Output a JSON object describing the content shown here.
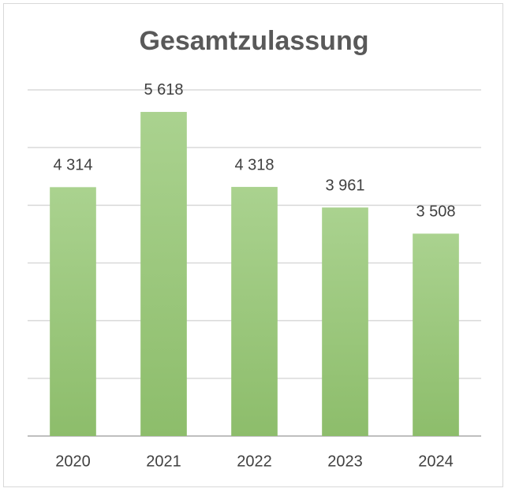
{
  "chart_data": {
    "type": "bar",
    "title": "Gesamtzulassung",
    "categories": [
      "2020",
      "2021",
      "2022",
      "2023",
      "2024"
    ],
    "values": [
      4314,
      5618,
      4318,
      3961,
      3508
    ],
    "value_labels": [
      "4 314",
      "5 618",
      "4 318",
      "3 961",
      "3 508"
    ],
    "color": "#9fcb83",
    "ylim": [
      0,
      6000
    ],
    "yticks": [
      0,
      1000,
      2000,
      3000,
      4000,
      5000,
      6000
    ],
    "grid": true
  }
}
